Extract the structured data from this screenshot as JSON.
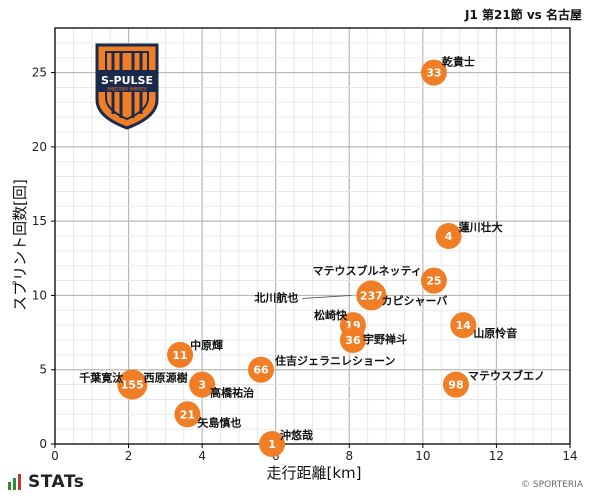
{
  "chart_data": {
    "type": "scatter",
    "title": "J1 第21節 vs 名古屋",
    "xlabel": "走行距離[km]",
    "ylabel": "スプリント回数[回]",
    "xlim": [
      0,
      14
    ],
    "ylim": [
      0,
      28
    ],
    "xticks": [
      0,
      2,
      4,
      6,
      8,
      10,
      12,
      14
    ],
    "yticks": [
      0,
      5,
      10,
      15,
      20,
      25
    ],
    "grid": true,
    "marker_color": "#F07E26",
    "points": [
      {
        "name": "乾貴士",
        "number": "33",
        "x": 10.3,
        "y": 25
      },
      {
        "name": "蓮川壮大",
        "number": "4",
        "x": 10.7,
        "y": 14
      },
      {
        "name": "マテウスブルネッティ",
        "number": "25",
        "x": 10.3,
        "y": 11
      },
      {
        "name": "北川航也",
        "number": "237",
        "x": 8.6,
        "y": 10
      },
      {
        "name": "カピシャーバ",
        "number": "",
        "x": 8.55,
        "y": 10
      },
      {
        "name": "松崎快",
        "number": "19",
        "x": 8.1,
        "y": 8
      },
      {
        "name": "宇野禅斗",
        "number": "36",
        "x": 8.1,
        "y": 7
      },
      {
        "name": "山原怜音",
        "number": "14",
        "x": 11.1,
        "y": 8
      },
      {
        "name": "中原輝",
        "number": "11",
        "x": 3.4,
        "y": 6
      },
      {
        "name": "住吉ジェラニレショーン",
        "number": "66",
        "x": 5.6,
        "y": 5
      },
      {
        "name": "千葉寛汰",
        "number": "155",
        "x": 2.1,
        "y": 4
      },
      {
        "name": "西原源樹",
        "number": "",
        "x": 2.3,
        "y": 4
      },
      {
        "name": "高橋祐治",
        "number": "3",
        "x": 4.0,
        "y": 4
      },
      {
        "name": "マテウスブエノ",
        "number": "98",
        "x": 10.9,
        "y": 4
      },
      {
        "name": "矢島慎也",
        "number": "21",
        "x": 3.6,
        "y": 2
      },
      {
        "name": "沖悠哉",
        "number": "1",
        "x": 5.9,
        "y": 0
      }
    ]
  },
  "logo": {
    "text_main": "S-PULSE",
    "text_sub": "SHIZUOKA SHIMIZU",
    "color_orange": "#F07E26",
    "color_navy": "#1B2A4A"
  },
  "footer": {
    "brand": "STATs",
    "copyright": "© SPORTERIA"
  }
}
